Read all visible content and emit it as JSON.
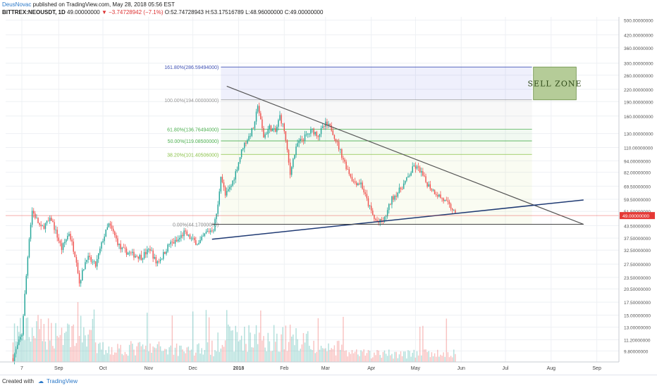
{
  "header": {
    "author": "DeusNovac",
    "published": "published on TradingView.com, May 28, 2018 05:56 EST",
    "symbol": "BITTREX:NEOUSDT, 1D",
    "price": "49.00000000",
    "change": "▼ −3.74728942 (−7.1%)",
    "ohlc": "O:52.74728943 H:53.17516789 L:48.96000000 C:49.00000000"
  },
  "footer": {
    "created_with": "Created with",
    "brand": "TradingView"
  },
  "colors": {
    "up": "#26a69a",
    "down": "#ef5350",
    "trendline": "#555555",
    "support": "#1f3a73",
    "sell_zone": "#b5cc98",
    "price_marker": "#e53935",
    "fib_blue": "#4052b5",
    "fib_green": "#4caf50",
    "fib_olive": "#8bc34a"
  },
  "chart_data": {
    "type": "candlestick",
    "y_scale": "log",
    "y_ticks": [
      "9.80000000",
      "11.20000000",
      "13.00000000",
      "15.00000000",
      "17.50000000",
      "20.50000000",
      "23.50000000",
      "27.50000000",
      "32.50000000",
      "37.50000000",
      "43.50000000",
      "51.50000000",
      "59.50000000",
      "69.50000000",
      "82.00000000",
      "94.00000000",
      "110.00000000",
      "130.00000000",
      "160.00000000",
      "190.00000000",
      "220.00000000",
      "260.00000000",
      "300.00000000",
      "360.00000000",
      "420.00000000",
      "500.00000000"
    ],
    "x_ticks": [
      "7",
      "Sep",
      "Oct",
      "Nov",
      "Dec",
      "2018",
      "Feb",
      "Mar",
      "Apr",
      "May",
      "Jun",
      "Jul",
      "Aug",
      "Sep"
    ],
    "last_price": "49.00000000",
    "fib_levels": [
      {
        "label": "161.80%(286.59494000)",
        "value": 286.59494
      },
      {
        "label": "100.00%(194.00000000)",
        "value": 194.0
      },
      {
        "label": "61.80%(136.76494000)",
        "value": 136.76494
      },
      {
        "label": "50.00%(119.08500000)",
        "value": 119.085
      },
      {
        "label": "38.20%(101.40506000)",
        "value": 101.40506
      },
      {
        "label": "0.00%(44.17000000)",
        "value": 44.17
      }
    ],
    "sell_zone_label": "SELL ZONE",
    "sell_zone_range": [
      194,
      286.59494
    ],
    "price_path": [
      [
        "2017-08-01",
        9
      ],
      [
        "2017-08-07",
        12
      ],
      [
        "2017-08-12",
        38
      ],
      [
        "2017-08-14",
        52
      ],
      [
        "2017-08-20",
        42
      ],
      [
        "2017-08-27",
        47
      ],
      [
        "2017-09-03",
        33
      ],
      [
        "2017-09-08",
        40
      ],
      [
        "2017-09-13",
        29
      ],
      [
        "2017-09-15",
        22
      ],
      [
        "2017-09-20",
        30
      ],
      [
        "2017-09-26",
        27
      ],
      [
        "2017-10-01",
        37
      ],
      [
        "2017-10-05",
        44
      ],
      [
        "2017-10-08",
        40
      ],
      [
        "2017-10-13",
        33
      ],
      [
        "2017-10-20",
        31
      ],
      [
        "2017-10-27",
        30
      ],
      [
        "2017-11-02",
        33
      ],
      [
        "2017-11-06",
        28
      ],
      [
        "2017-11-10",
        30
      ],
      [
        "2017-11-15",
        35
      ],
      [
        "2017-11-20",
        36
      ],
      [
        "2017-11-25",
        40
      ],
      [
        "2017-11-30",
        37
      ],
      [
        "2017-12-05",
        35
      ],
      [
        "2017-12-10",
        40
      ],
      [
        "2017-12-15",
        42
      ],
      [
        "2017-12-18",
        55
      ],
      [
        "2017-12-20",
        80
      ],
      [
        "2017-12-23",
        62
      ],
      [
        "2017-12-27",
        70
      ],
      [
        "2017-12-30",
        82
      ],
      [
        "2018-01-04",
        112
      ],
      [
        "2018-01-08",
        125
      ],
      [
        "2018-01-12",
        145
      ],
      [
        "2018-01-14",
        185
      ],
      [
        "2018-01-16",
        150
      ],
      [
        "2018-01-18",
        125
      ],
      [
        "2018-01-22",
        140
      ],
      [
        "2018-01-26",
        132
      ],
      [
        "2018-01-29",
        160
      ],
      [
        "2018-02-01",
        135
      ],
      [
        "2018-02-05",
        80
      ],
      [
        "2018-02-06",
        90
      ],
      [
        "2018-02-10",
        115
      ],
      [
        "2018-02-15",
        125
      ],
      [
        "2018-02-20",
        135
      ],
      [
        "2018-02-24",
        128
      ],
      [
        "2018-03-01",
        145
      ],
      [
        "2018-03-05",
        138
      ],
      [
        "2018-03-10",
        110
      ],
      [
        "2018-03-15",
        88
      ],
      [
        "2018-03-20",
        73
      ],
      [
        "2018-03-25",
        72
      ],
      [
        "2018-03-30",
        56
      ],
      [
        "2018-04-03",
        47
      ],
      [
        "2018-04-06",
        45
      ],
      [
        "2018-04-10",
        47
      ],
      [
        "2018-04-15",
        60
      ],
      [
        "2018-04-20",
        66
      ],
      [
        "2018-04-25",
        75
      ],
      [
        "2018-04-30",
        88
      ],
      [
        "2018-05-04",
        84
      ],
      [
        "2018-05-08",
        73
      ],
      [
        "2018-05-13",
        66
      ],
      [
        "2018-05-18",
        61
      ],
      [
        "2018-05-22",
        57
      ],
      [
        "2018-05-26",
        53
      ],
      [
        "2018-05-28",
        49
      ]
    ],
    "trendlines": [
      {
        "name": "descending resistance",
        "from": [
          "2017-12-24",
          228
        ],
        "to": [
          "2018-08-23",
          44.17
        ]
      },
      {
        "name": "rising support",
        "from": [
          "2017-12-14",
          37
        ],
        "to": [
          "2018-08-23",
          59
        ]
      },
      {
        "name": "horizontal support",
        "from": [
          "2017-12-14",
          44.17
        ],
        "to": [
          "2018-08-23",
          44.17
        ]
      }
    ]
  }
}
